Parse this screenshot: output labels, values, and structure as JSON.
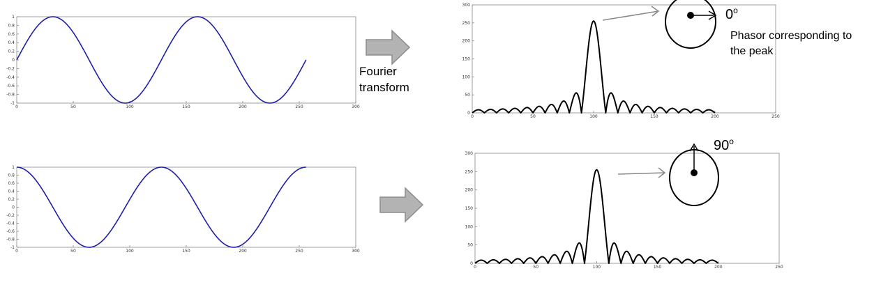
{
  "arrow_label": [
    "Fourier",
    "transform"
  ],
  "phasor_top": {
    "angle_label": "0",
    "angle_sup": "o",
    "note": [
      "Phasor corresponding to",
      "the peak"
    ]
  },
  "phasor_bottom": {
    "angle_label": "90",
    "angle_sup": "o"
  },
  "colors": {
    "sinusoid": "#1f1fa8",
    "spectrum": "#000000",
    "arrow_fill": "#b3b3b3",
    "arrow_stroke": "#8c8c8c",
    "axes": "#888888"
  },
  "chart_data": [
    {
      "type": "line",
      "id": "sine_top",
      "function": "sin",
      "period": 128,
      "x_range": [
        0,
        256
      ],
      "xlim": [
        0,
        300
      ],
      "ylim": [
        -1,
        1
      ],
      "xticks": [
        0,
        50,
        100,
        150,
        200,
        250,
        300
      ],
      "yticks": [
        1,
        0.8,
        0.6,
        0.4,
        0.2,
        0,
        -0.2,
        -0.4,
        -0.6,
        -0.8,
        -1
      ],
      "ytick_labels": [
        "1",
        "0.8",
        "0.6",
        "0.4",
        "0.2",
        "0",
        "-0.2",
        "-0.4",
        "-0.6",
        "-0.8",
        "-1"
      ]
    },
    {
      "type": "line",
      "id": "spectrum_top",
      "function": "abs_sinc",
      "peak_x": 100,
      "peak_value": 255,
      "x_range": [
        0,
        200
      ],
      "xlim": [
        0,
        250
      ],
      "ylim": [
        0,
        300
      ],
      "xticks": [
        0,
        50,
        100,
        150,
        200,
        250
      ],
      "yticks": [
        0,
        50,
        100,
        150,
        200,
        250,
        300
      ]
    },
    {
      "type": "line",
      "id": "sine_bottom",
      "function": "cos",
      "period": 128,
      "x_range": [
        0,
        256
      ],
      "xlim": [
        0,
        300
      ],
      "ylim": [
        -1,
        1
      ],
      "xticks": [
        0,
        50,
        100,
        150,
        200,
        250,
        300
      ],
      "yticks": [
        1,
        0.8,
        0.6,
        0.4,
        0.2,
        0,
        -0.2,
        -0.4,
        -0.6,
        -0.8,
        -1
      ],
      "ytick_labels": [
        "1",
        "0.8",
        "0.6",
        "0.4",
        "0.2",
        "0",
        "-0.2",
        "-0.4",
        "-0.6",
        "-0.8",
        "-1"
      ]
    },
    {
      "type": "line",
      "id": "spectrum_bottom",
      "function": "abs_sinc",
      "peak_x": 100,
      "peak_value": 255,
      "x_range": [
        0,
        200
      ],
      "xlim": [
        0,
        250
      ],
      "ylim": [
        0,
        300
      ],
      "xticks": [
        0,
        50,
        100,
        150,
        200,
        250
      ],
      "yticks": [
        0,
        50,
        100,
        150,
        200,
        250,
        300
      ]
    }
  ]
}
